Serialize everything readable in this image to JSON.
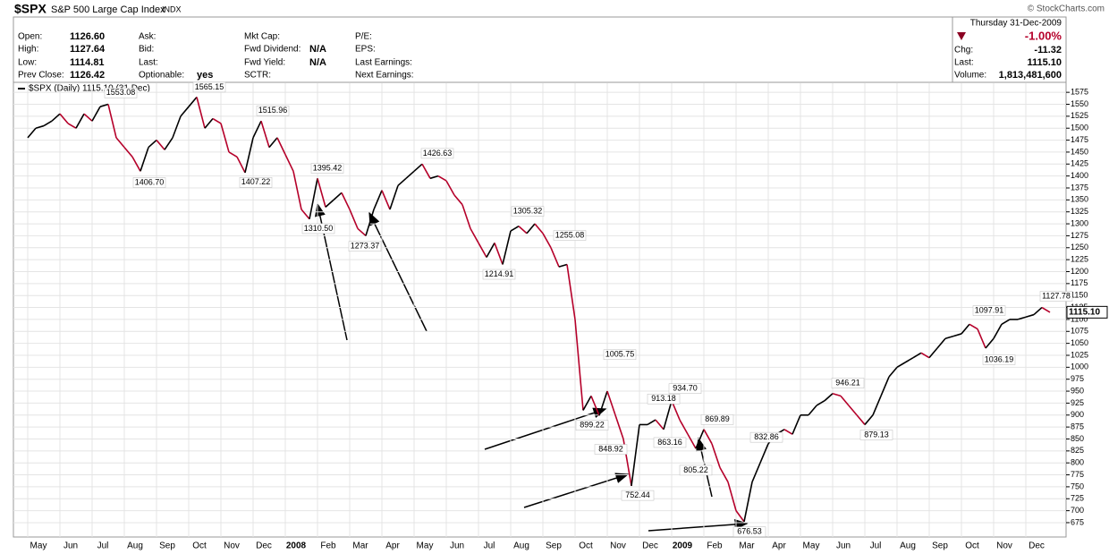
{
  "header": {
    "symbol": "$SPX",
    "name": "S&P 500 Large Cap Index",
    "exchange": "INDX",
    "credit": "© StockCharts.com",
    "date": "Thursday 31-Dec-2009",
    "col1": [
      [
        "Open:",
        "1126.60"
      ],
      [
        "High:",
        "1127.64"
      ],
      [
        "Low:",
        "1114.81"
      ],
      [
        "Prev Close:",
        "1126.42"
      ]
    ],
    "col2": [
      [
        "Ask:",
        ""
      ],
      [
        "Bid:",
        ""
      ],
      [
        "Last:",
        ""
      ],
      [
        "Optionable:",
        "yes"
      ]
    ],
    "col3": [
      [
        "Mkt Cap:",
        ""
      ],
      [
        "Fwd Dividend:",
        "N/A"
      ],
      [
        "Fwd Yield:",
        "N/A"
      ],
      [
        "SCTR:",
        ""
      ]
    ],
    "col4": [
      "P/E:",
      "EPS:",
      "Last Earnings:",
      "Next Earnings:"
    ],
    "change_pct": "-1.00%",
    "chg_label": "Chg:",
    "chg": "-11.32",
    "last_label": "Last:",
    "last": "1115.10",
    "volume_label": "Volume:",
    "volume": "1,813,481,600"
  },
  "chart_data": {
    "type": "line",
    "legend": "$SPX (Daily) 1115.10 (31 Dec)",
    "categories": [
      "May",
      null,
      null,
      null,
      "Jun",
      null,
      null,
      null,
      "Jul",
      null,
      null,
      null,
      "Aug",
      null,
      null,
      null,
      "Sep",
      null,
      null,
      null,
      "Oct",
      null,
      null,
      null,
      "Nov",
      null,
      null,
      null,
      "Dec",
      null,
      null,
      null,
      "2008",
      null,
      null,
      null,
      "Feb",
      null,
      null,
      null,
      "Mar",
      null,
      null,
      null,
      "Apr",
      null,
      null,
      null,
      "May",
      null,
      null,
      null,
      "Jun",
      null,
      null,
      null,
      "Jul",
      null,
      null,
      null,
      "Aug",
      null,
      null,
      null,
      "Sep",
      null,
      null,
      null,
      "Oct",
      null,
      null,
      null,
      "Nov",
      null,
      null,
      null,
      "Dec",
      null,
      null,
      null,
      "2009",
      null,
      null,
      null,
      "Feb",
      null,
      null,
      null,
      "Mar",
      null,
      null,
      null,
      "Apr",
      null,
      null,
      null,
      "May",
      null,
      null,
      null,
      "Jun",
      null,
      null,
      null,
      "Jul",
      null,
      null,
      null,
      "Aug",
      null,
      null,
      null,
      "Sep",
      null,
      null,
      null,
      "Oct",
      null,
      null,
      null,
      "Nov",
      null,
      null,
      null,
      "Dec",
      null,
      null,
      null
    ],
    "series": [
      {
        "name": "$SPX",
        "up_color": "#000000",
        "down_color": "#b5002a",
        "values": [
          1480,
          1500,
          1505,
          1515,
          1530,
          1510,
          1500,
          1530,
          1515,
          1545,
          1550,
          1480,
          1460,
          1440,
          1410,
          1460,
          1475,
          1455,
          1480,
          1525,
          1545,
          1565,
          1500,
          1520,
          1510,
          1450,
          1440,
          1407,
          1480,
          1515,
          1460,
          1480,
          1445,
          1410,
          1330,
          1310,
          1395,
          1335,
          1350,
          1365,
          1330,
          1290,
          1275,
          1330,
          1370,
          1330,
          1380,
          1395,
          1410,
          1425,
          1395,
          1400,
          1390,
          1360,
          1340,
          1290,
          1260,
          1230,
          1260,
          1215,
          1285,
          1295,
          1280,
          1300,
          1280,
          1250,
          1210,
          1215,
          1100,
          910,
          940,
          899,
          950,
          900,
          850,
          752,
          880,
          880,
          890,
          870,
          930,
          890,
          860,
          830,
          870,
          840,
          790,
          760,
          700,
          677,
          760,
          800,
          840,
          860,
          870,
          860,
          900,
          900,
          920,
          930,
          945,
          940,
          920,
          900,
          880,
          900,
          940,
          980,
          1000,
          1010,
          1020,
          1030,
          1020,
          1040,
          1060,
          1065,
          1070,
          1090,
          1080,
          1040,
          1060,
          1090,
          1100,
          1100,
          1105,
          1110,
          1125,
          1115
        ]
      }
    ],
    "annotations": [
      {
        "value": 1553.08,
        "label": "1553.08"
      },
      {
        "value": 1406.7,
        "label": "1406.70"
      },
      {
        "value": 1565.15,
        "label": "1565.15"
      },
      {
        "value": 1407.22,
        "label": "1407.22"
      },
      {
        "value": 1515.96,
        "label": "1515.96"
      },
      {
        "value": 1395.42,
        "label": "1395.42"
      },
      {
        "value": 1310.5,
        "label": "1310.50"
      },
      {
        "value": 1273.37,
        "label": "1273.37"
      },
      {
        "value": 1426.63,
        "label": "1426.63"
      },
      {
        "value": 1305.32,
        "label": "1305.32"
      },
      {
        "value": 1214.91,
        "label": "1214.91"
      },
      {
        "value": 1255.08,
        "label": "1255.08"
      },
      {
        "value": 1005.75,
        "label": "1005.75"
      },
      {
        "value": 899.22,
        "label": "899.22"
      },
      {
        "value": 848.92,
        "label": "848.92"
      },
      {
        "value": 913.18,
        "label": "913.18"
      },
      {
        "value": 934.7,
        "label": "934.70"
      },
      {
        "value": 863.16,
        "label": "863.16"
      },
      {
        "value": 752.44,
        "label": "752.44"
      },
      {
        "value": 869.89,
        "label": "869.89"
      },
      {
        "value": 805.22,
        "label": "805.22"
      },
      {
        "value": 832.86,
        "label": "832.86"
      },
      {
        "value": 676.53,
        "label": "676.53"
      },
      {
        "value": 946.21,
        "label": "946.21"
      },
      {
        "value": 879.13,
        "label": "879.13"
      },
      {
        "value": 1097.91,
        "label": "1097.91"
      },
      {
        "value": 1036.19,
        "label": "1036.19"
      },
      {
        "value": 1127.78,
        "label": "1127.78"
      }
    ],
    "last_value": {
      "value": 1115.1,
      "label": "1115.10"
    },
    "ylim": [
      645,
      1594
    ],
    "yticks": [
      675,
      700,
      725,
      750,
      775,
      800,
      825,
      850,
      875,
      900,
      925,
      950,
      975,
      1000,
      1025,
      1050,
      1075,
      1100,
      1125,
      1150,
      1175,
      1200,
      1225,
      1250,
      1275,
      1300,
      1325,
      1350,
      1375,
      1400,
      1425,
      1450,
      1475,
      1500,
      1525,
      1550,
      1575
    ],
    "grid": true
  }
}
